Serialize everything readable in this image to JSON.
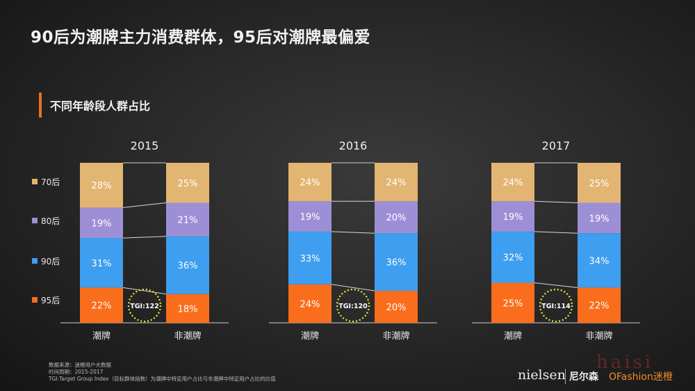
{
  "title": "90后为潮牌主力消费群体，95后对潮牌最偏爱",
  "section_title": "不同年龄段人群占比",
  "chart_data": {
    "type": "stacked-bar",
    "ylim": [
      0,
      100
    ],
    "legend": [
      "70后",
      "80后",
      "90后",
      "95后"
    ],
    "colors": {
      "70后": "#e3b572",
      "80后": "#9d8fd6",
      "90后": "#3e9eef",
      "95后": "#fa6d1c"
    },
    "groups": [
      {
        "year": "2015",
        "tgi": "TGI:122",
        "bars": [
          {
            "category": "潮牌",
            "values": {
              "95后": 22,
              "90后": 31,
              "80后": 19,
              "70后": 28
            }
          },
          {
            "category": "非潮牌",
            "values": {
              "95后": 18,
              "90后": 36,
              "80后": 21,
              "70后": 25
            }
          }
        ]
      },
      {
        "year": "2016",
        "tgi": "TGI:120",
        "bars": [
          {
            "category": "潮牌",
            "values": {
              "95后": 24,
              "90后": 33,
              "80后": 19,
              "70后": 24
            }
          },
          {
            "category": "非潮牌",
            "values": {
              "95后": 20,
              "90后": 36,
              "80后": 20,
              "70后": 24
            }
          }
        ]
      },
      {
        "year": "2017",
        "tgi": "TGI:114",
        "bars": [
          {
            "category": "潮牌",
            "values": {
              "95后": 25,
              "90后": 32,
              "80后": 19,
              "70后": 24
            }
          },
          {
            "category": "非潮牌",
            "values": {
              "95后": 22,
              "90后": 34,
              "80后": 19,
              "70后": 25
            }
          }
        ]
      }
    ]
  },
  "footer": {
    "source": "数据来源：迷橙用户大数据",
    "period": "时间周期：2015-2017",
    "tgi_note": "TGI:Target Group Index（目标群体指数）为潮牌中特定用户占比与非潮牌中特定用户占比的比值"
  },
  "logos": {
    "nielsen": "nielsen",
    "nielsen_cn": "尼尔森",
    "ofashion": "OFashion迷橙",
    "watermark": "haisi"
  }
}
